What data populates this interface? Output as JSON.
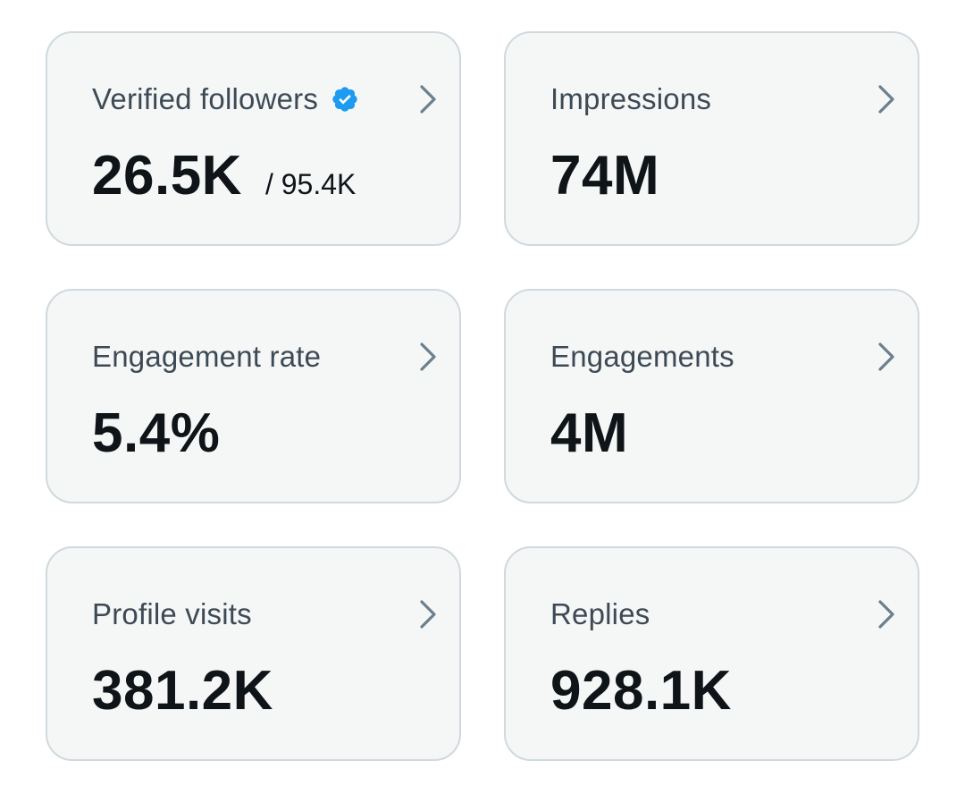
{
  "cards": [
    {
      "label": "Verified followers",
      "value": "26.5K",
      "secondary": "/ 95.4K",
      "icon": "verified-badge-icon"
    },
    {
      "label": "Impressions",
      "value": "74M"
    },
    {
      "label": "Engagement rate",
      "value": "5.4%"
    },
    {
      "label": "Engagements",
      "value": "4M"
    },
    {
      "label": "Profile visits",
      "value": "381.2K"
    },
    {
      "label": "Replies",
      "value": "928.1K"
    }
  ],
  "colors": {
    "card_background": "#f5f7f7",
    "card_border": "#cfd9de",
    "label_text": "#3d4a55",
    "value_text": "#0f1419",
    "verified_badge": "#1d9bf0",
    "chevron": "#6b7f8e"
  }
}
